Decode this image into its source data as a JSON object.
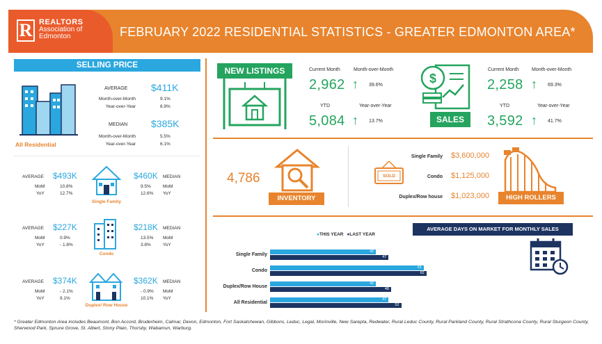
{
  "header": {
    "logo_line1": "REALTORS",
    "logo_line2": "Association of",
    "logo_line3": "Edmonton",
    "title": "FEBRUARY 2022 RESIDENTIAL STATISTICS - GREATER EDMONTON AREA*"
  },
  "selling_price": {
    "banner": "SELLING PRICE",
    "all_residential": {
      "label": "All Residential",
      "average_label": "AVERAGE",
      "average": "$411K",
      "mom_label": "Month-over-Month",
      "avg_mom": "9.1%",
      "yoy_label": "Year-over-Year",
      "avg_yoy": "8.9%",
      "median_label": "MEDIAN",
      "median": "$385K",
      "med_mom": "5.5%",
      "med_yoy": "6.1%"
    },
    "types": [
      {
        "label": "Single Family",
        "average": "$493K",
        "avg_mom": "10.8%",
        "avg_yoy": "12.7%",
        "median": "$460K",
        "med_mom": "9.5%",
        "med_yoy": "12.6%"
      },
      {
        "label": "Condo",
        "average": "$227K",
        "avg_mom": "0.9%",
        "avg_yoy": "- 1.8%",
        "median": "$218K",
        "med_mom": "13.5%",
        "med_yoy": "3.8%"
      },
      {
        "label": "Duplex/ Row House",
        "average": "$374K",
        "avg_mom": "- 2.1%",
        "avg_yoy": "9.1%",
        "median": "$362K",
        "med_mom": "- 0.9%",
        "med_yoy": "10.1%"
      }
    ],
    "average_word": "AVERAGE",
    "median_word": "MEDIAN",
    "mom_word": "MoM",
    "yoy_word": "YoY"
  },
  "new_listings": {
    "title": "NEW LISTINGS",
    "current_label": "Current Month",
    "current": "2,962",
    "mom_label": "Month-over-Month",
    "mom": "39.6%",
    "ytd_label": "YTD",
    "ytd": "5,084",
    "yoy_label": "Year-over-Year",
    "yoy": "13.7%"
  },
  "sales": {
    "title": "SALES",
    "current_label": "Current Month",
    "current": "2,258",
    "mom_label": "Month-over-Month",
    "mom": "69.3%",
    "ytd_label": "YTD",
    "ytd": "3,592",
    "yoy_label": "Year-over-Year",
    "yoy": "41.7%"
  },
  "inventory": {
    "value": "4,786",
    "label": "INVENTORY"
  },
  "high_rollers": {
    "label": "HIGH ROLLERS",
    "sold_sign": "SOLD",
    "rows": [
      {
        "type": "Single Family",
        "price": "$3,600,000"
      },
      {
        "type": "Condo",
        "price": "$1,125,000"
      },
      {
        "type": "Duplex/Row house",
        "price": "$1,023,000"
      }
    ]
  },
  "days_on_market": {
    "banner": "AVERAGE DAYS ON MARKET FOR MONTHLY SALES"
  },
  "chart_data": {
    "type": "bar",
    "orientation": "horizontal",
    "categories": [
      "Single Family",
      "Condo",
      "Duplex/Row House",
      "All Residential"
    ],
    "series": [
      {
        "name": "THIS YEAR",
        "values": [
          42,
          61,
          42,
          47
        ],
        "color": "#2aa7df"
      },
      {
        "name": "LAST YEAR",
        "values": [
          47,
          62,
          48,
          52
        ],
        "color": "#1d3461"
      }
    ],
    "legend_position": "top",
    "data_labels": true
  },
  "footnote": "* Greater Edmonton Area includes Beaumont, Bon Accord, Bruderheim, Calmar, Devon, Edmonton, Fort Saskatchewan, Gibbons, Leduc, Legal, Morinville, New Sarepta, Redwater, Rural Leduc County, Rural Parkland County, Rural Strathcona County, Rural Sturgeon County, Sherwood Park, Spruce Grove, St. Albert, Stony Plain, Thorsby, Wabamun, Warburg."
}
